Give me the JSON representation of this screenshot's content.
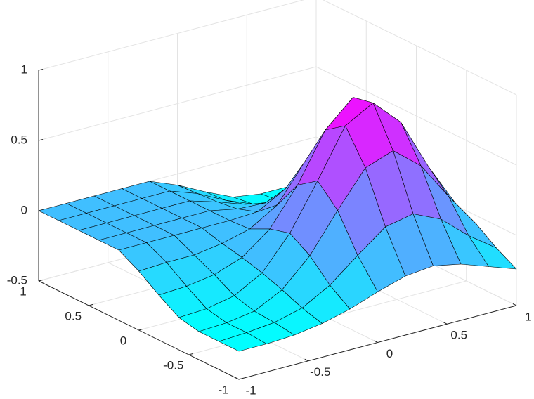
{
  "chart_data": {
    "type": "surface",
    "colormap": "cool",
    "edge_color": "#000000",
    "grid": true,
    "x": [
      -1,
      -0.8,
      -0.6,
      -0.4,
      -0.2,
      0,
      0.2,
      0.4,
      0.6,
      0.8,
      1
    ],
    "y": [
      -1,
      -0.8,
      -0.6,
      -0.4,
      -0.2,
      0,
      0.2,
      0.4,
      0.6,
      0.8,
      1
    ],
    "z": [
      [
        -0.3,
        -0.3,
        -0.29,
        -0.26,
        -0.21,
        -0.14,
        -0.08,
        -0.06,
        -0.1,
        -0.17,
        -0.24
      ],
      [
        -0.3,
        -0.29,
        -0.27,
        -0.22,
        -0.11,
        0.05,
        0.2,
        0.24,
        0.15,
        -0.02,
        -0.16
      ],
      [
        -0.3,
        -0.29,
        -0.26,
        -0.16,
        0.03,
        0.3,
        0.55,
        0.62,
        0.46,
        0.19,
        -0.06
      ],
      [
        -0.27,
        -0.26,
        -0.22,
        -0.11,
        0.12,
        0.44,
        0.78,
        0.89,
        0.7,
        0.33,
        0.01
      ],
      [
        -0.18,
        -0.17,
        -0.14,
        -0.07,
        0.08,
        0.34,
        0.68,
        0.86,
        0.7,
        0.33,
        0.01
      ],
      [
        -0.08,
        -0.07,
        -0.07,
        -0.04,
        0.01,
        0.13,
        0.39,
        0.57,
        0.46,
        0.19,
        -0.06
      ],
      [
        0,
        0,
        0,
        0,
        0,
        0.01,
        0.12,
        0.22,
        0.15,
        -0.02,
        -0.16
      ],
      [
        0,
        0,
        0,
        0,
        0,
        -0.04,
        -0.05,
        -0.05,
        -0.1,
        -0.17,
        -0.24
      ],
      [
        0,
        0,
        0,
        0,
        0,
        -0.06,
        -0.13,
        -0.2,
        -0.23,
        -0.26,
        -0.28
      ],
      [
        0,
        0,
        0,
        0,
        0,
        -0.07,
        -0.17,
        -0.25,
        -0.28,
        -0.29,
        -0.29
      ],
      [
        0,
        0,
        0,
        0,
        0,
        -0.08,
        -0.18,
        -0.27,
        -0.3,
        -0.3,
        -0.3
      ]
    ],
    "xlim": [
      -1,
      1
    ],
    "xticks": [
      -1,
      -0.5,
      0,
      0.5,
      1
    ],
    "ylim": [
      -1,
      1
    ],
    "yticks": [
      -1,
      -0.5,
      0,
      0.5,
      1
    ],
    "zlim": [
      -0.5,
      1
    ],
    "zticks": [
      -0.5,
      0,
      0.5,
      1
    ]
  }
}
